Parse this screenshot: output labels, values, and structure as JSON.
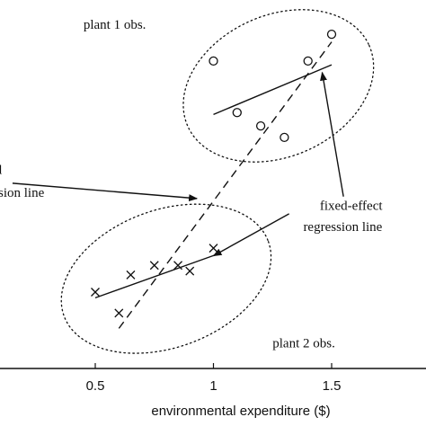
{
  "chart_data": {
    "type": "scatter",
    "title": "",
    "xlabel": "environmental expenditure ($)",
    "ylabel": "",
    "xlim": [
      0,
      2.0
    ],
    "ylim": [
      0,
      10
    ],
    "grid": false,
    "x_ticks": [
      {
        "value": 0.5,
        "label": "0.5"
      },
      {
        "value": 1.0,
        "label": "1"
      },
      {
        "value": 1.5,
        "label": "1.5"
      }
    ],
    "series": [
      {
        "name": "plant 1 obs.",
        "marker": "circle",
        "points": [
          {
            "x": 1.0,
            "y": 8.05
          },
          {
            "x": 1.1,
            "y": 6.7
          },
          {
            "x": 1.2,
            "y": 6.35
          },
          {
            "x": 1.3,
            "y": 6.05
          },
          {
            "x": 1.4,
            "y": 8.05
          },
          {
            "x": 1.5,
            "y": 8.75
          }
        ]
      },
      {
        "name": "plant 2 obs.",
        "marker": "cross",
        "points": [
          {
            "x": 0.5,
            "y": 2.0
          },
          {
            "x": 0.6,
            "y": 1.45
          },
          {
            "x": 0.65,
            "y": 2.45
          },
          {
            "x": 0.75,
            "y": 2.7
          },
          {
            "x": 0.85,
            "y": 2.7
          },
          {
            "x": 0.9,
            "y": 2.55
          },
          {
            "x": 1.0,
            "y": 3.15
          }
        ]
      }
    ],
    "lines": [
      {
        "name": "fixed-effect regression line",
        "style": "solid",
        "x": [
          1.0,
          1.5
        ],
        "y": [
          6.65,
          7.95
        ]
      },
      {
        "name": "fixed-effect regression line",
        "style": "solid",
        "x": [
          0.5,
          1.02
        ],
        "y": [
          1.85,
          3.0
        ]
      },
      {
        "name": "pooled regression line",
        "style": "dashed",
        "x": [
          0.6,
          1.5
        ],
        "y": [
          1.05,
          8.55
        ]
      }
    ],
    "ellipses": [
      {
        "label": "plant 1 obs.",
        "cx": 1.275,
        "cy": 7.4,
        "rx": 0.42,
        "ry": 1.85,
        "angle": -24
      },
      {
        "label": "plant 2 obs.",
        "cx": 0.8,
        "cy": 2.35,
        "rx": 0.46,
        "ry": 1.8,
        "angle": -20
      }
    ],
    "annotations": [
      {
        "text": "plant 1 obs.",
        "anchor_x": 0.45,
        "anchor_y": 8.9
      },
      {
        "text": "pooled",
        "anchor_x": -0.05,
        "anchor_y": 5.1
      },
      {
        "text": "regression line",
        "anchor_x": -0.05,
        "anchor_y": 4.5
      },
      {
        "text": "fixed-effect",
        "anchor_x": 1.45,
        "anchor_y": 4.15
      },
      {
        "text": "regression line",
        "anchor_x": 1.38,
        "anchor_y": 3.6
      },
      {
        "text": "plant 2 obs.",
        "anchor_x": 1.25,
        "anchor_y": 0.55
      }
    ],
    "arrows": [
      {
        "from": [
          0.15,
          4.85
        ],
        "to": [
          0.93,
          4.45
        ]
      },
      {
        "from": [
          1.55,
          4.5
        ],
        "to": [
          1.46,
          7.75
        ]
      },
      {
        "from": [
          1.32,
          4.05
        ],
        "to": [
          1.0,
          2.95
        ]
      }
    ]
  }
}
